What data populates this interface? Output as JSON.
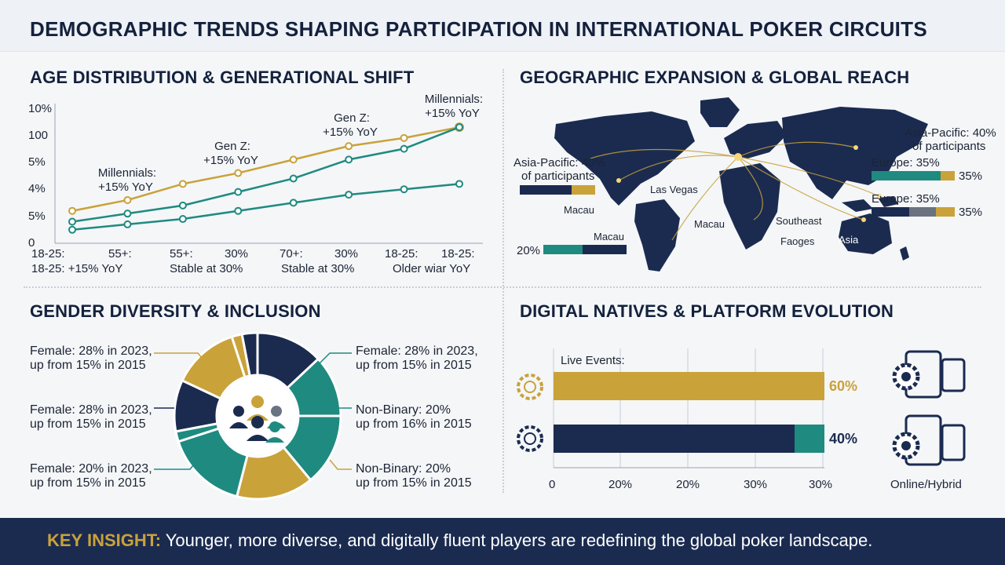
{
  "title": "DEMOGRAPHIC TRENDS SHAPING PARTICIPATION IN INTERNATIONAL POKER CIRCUITS",
  "colors": {
    "navy": "#1b2b50",
    "gold": "#c9a23a",
    "teal": "#1f8a80",
    "gray": "#6b7280"
  },
  "panels": {
    "age": {
      "title": "AGE DISTRIBUTION & GENERATIONAL SHIFT"
    },
    "geo": {
      "title": "GEOGRAPHIC EXPANSION & GLOBAL REACH"
    },
    "gender": {
      "title": "GENDER DIVERSITY & INCLUSION"
    },
    "digital": {
      "title": "DIGITAL NATIVES & PLATFORM EVOLUTION"
    }
  },
  "chart_data": [
    {
      "type": "line",
      "y_ticks": [
        "10%",
        "100",
        "5%",
        "4%",
        "5%",
        "0"
      ],
      "x_labels_top": [
        "18-25:",
        "55+:",
        "55+:",
        "30%",
        "70+:",
        "30%",
        "18-25:",
        "18-25:"
      ],
      "x_labels_bottom": [
        "18-25: +15% YoY",
        "Stable at 30%",
        "Stable at 30%",
        "Older wiar YoY"
      ],
      "annotations": [
        {
          "line1": "Millennials:",
          "line2": "+15% YoY"
        },
        {
          "line1": "Gen Z:",
          "line2": "+15% YoY"
        },
        {
          "line1": "Gen Z:",
          "line2": "+15% YoY"
        },
        {
          "line1": "Millennials:",
          "line2": "+15% YoY"
        }
      ],
      "series": [
        {
          "color": "#c9a23a",
          "values": [
            1.2,
            1.6,
            2.2,
            2.6,
            3.1,
            3.6,
            3.9,
            4.3
          ]
        },
        {
          "color": "#1f8a80",
          "values": [
            0.8,
            1.1,
            1.4,
            1.9,
            2.4,
            3.1,
            3.5,
            4.3
          ]
        },
        {
          "color": "#1f8a80",
          "values": [
            0.5,
            0.7,
            0.9,
            1.2,
            1.5,
            1.8,
            2.0,
            2.2
          ]
        }
      ],
      "ylim": [
        0,
        5
      ]
    },
    {
      "type": "pie",
      "slices": [
        {
          "color": "#1b2b50",
          "value": 13
        },
        {
          "color": "#1f8a80",
          "value": 12
        },
        {
          "color": "#1f8a80",
          "value": 14
        },
        {
          "color": "#c9a23a",
          "value": 15
        },
        {
          "color": "#1f8a80",
          "value": 16
        },
        {
          "color": "#1f8a80",
          "value": 2
        },
        {
          "color": "#1b2b50",
          "value": 10
        },
        {
          "color": "#c9a23a",
          "value": 13
        },
        {
          "color": "#c9a23a",
          "value": 2
        },
        {
          "color": "#1b2b50",
          "value": 3
        }
      ],
      "callouts_left": [
        {
          "line1": "Female: 28% in 2023,",
          "line2": "up from 15% in 2015"
        },
        {
          "line1": "Female: 28% in 2023,",
          "line2": "up from 15% in 2015"
        },
        {
          "line1": "Female: 20% in 2023,",
          "line2": "up from 15% in 2015"
        }
      ],
      "callouts_right": [
        {
          "line1": "Female: 28% in 2023,",
          "line2": "up from 15% in 2015"
        },
        {
          "line1": "Non-Binary: 20%",
          "line2": "up from 16% in 2015"
        },
        {
          "line1": "Non-Binary: 20%",
          "line2": "up from 15% in 2015"
        }
      ]
    },
    {
      "type": "bar",
      "series_label": "Live Events:",
      "bars": [
        {
          "value": 60,
          "label": "60%",
          "color": "#c9a23a"
        },
        {
          "value": 40,
          "label": "40%",
          "color": "#1b2b50",
          "accent": "#1f8a80"
        }
      ],
      "x_ticks": [
        "0",
        "20%",
        "20%",
        "30%",
        "30%"
      ],
      "right_label": "Online/Hybrid"
    }
  ],
  "map": {
    "labels": {
      "asia_left_1": "Asia-Pacific: 40%",
      "asia_left_2": "of participants",
      "asia_right_1": "Asia-Pacific: 40%",
      "asia_right_2": "of participants",
      "europe_1": "Europe: 35%",
      "europe_1_value": "35%",
      "europe_2": "Europe: 35%",
      "europe_2_value": "35%",
      "las_vegas": "Las Vegas",
      "macau_1": "Macau",
      "macau_2": "Macau",
      "macau_3": "Macau",
      "southeast": "Southeast",
      "faoges": "Faoges",
      "asia": "Asia",
      "value_20": "20%"
    }
  },
  "insight": {
    "label": "KEY INSIGHT:",
    "text": " Younger, more diverse, and digitally fluent players are redefining the global poker landscape."
  }
}
